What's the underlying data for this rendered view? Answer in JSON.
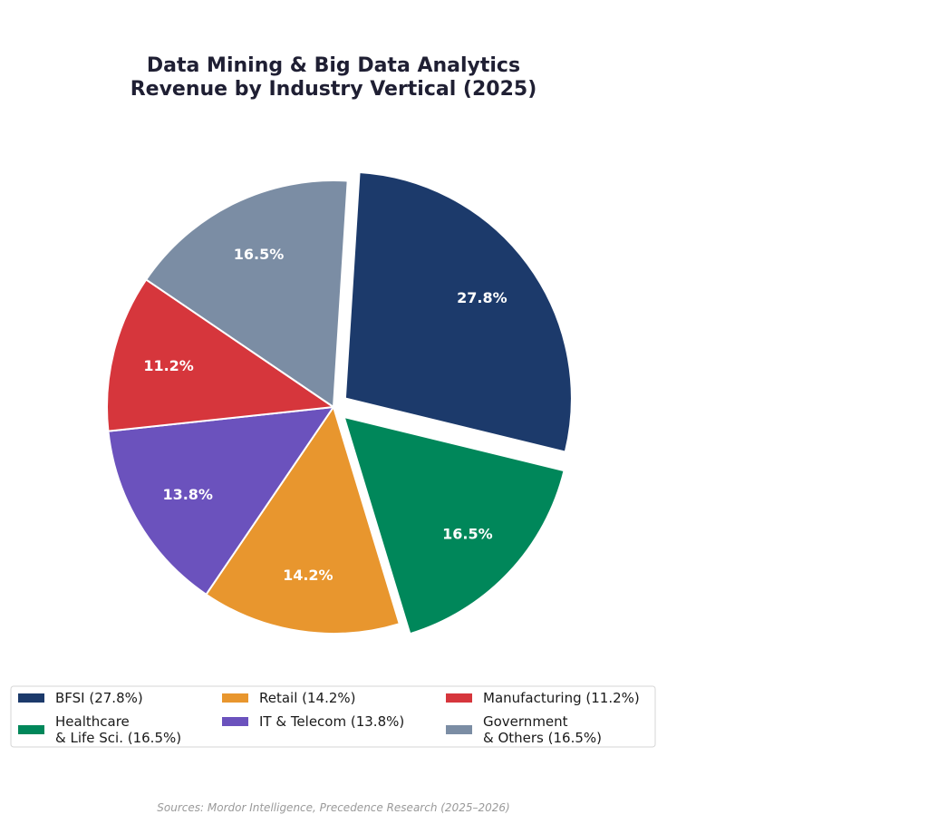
{
  "chart_data": {
    "type": "pie",
    "title_lines": [
      "Data Mining & Big Data Analytics",
      "Revenue by Industry Vertical (2025)"
    ],
    "slices": [
      {
        "key": "bfsi",
        "name": "BFSI",
        "value": 27.8,
        "label": "27.8%",
        "legend_lines": [
          "BFSI  (27.8%)"
        ],
        "color": "#1c3a6b",
        "exploded": true
      },
      {
        "key": "healthcare",
        "name": "Healthcare & Life Sci.",
        "value": 16.5,
        "label": "16.5%",
        "legend_lines": [
          "Healthcare",
          "& Life Sci.  (16.5%)"
        ],
        "color": "#00875a",
        "exploded": true
      },
      {
        "key": "retail",
        "name": "Retail",
        "value": 14.2,
        "label": "14.2%",
        "legend_lines": [
          "Retail  (14.2%)"
        ],
        "color": "#e8962e",
        "exploded": false
      },
      {
        "key": "it-telecom",
        "name": "IT & Telecom",
        "value": 13.8,
        "label": "13.8%",
        "legend_lines": [
          "IT & Telecom  (13.8%)"
        ],
        "color": "#6b52bd",
        "exploded": false
      },
      {
        "key": "manufacturing",
        "name": "Manufacturing",
        "value": 11.2,
        "label": "11.2%",
        "legend_lines": [
          "Manufacturing  (11.2%)"
        ],
        "color": "#d6363c",
        "exploded": false
      },
      {
        "key": "government",
        "name": "Government & Others",
        "value": 16.5,
        "label": "16.5%",
        "legend_lines": [
          "Government",
          "& Others  (16.5%)"
        ],
        "color": "#7b8da4",
        "exploded": false
      }
    ],
    "legend": {
      "placement": "bottom",
      "columns": 3
    },
    "source": "Sources: Mordor Intelligence, Precedence Research (2025–2026)"
  }
}
